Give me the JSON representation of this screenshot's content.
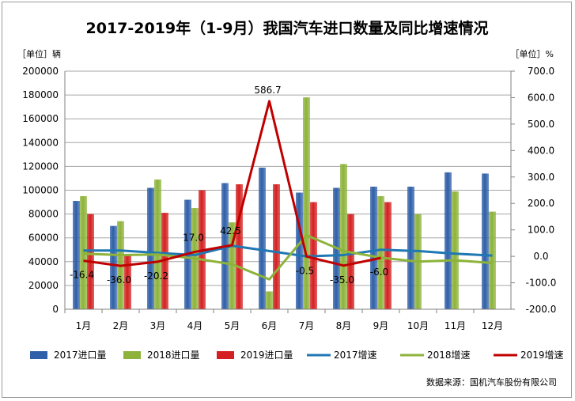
{
  "chart_data": {
    "type": "bar",
    "title": "2017-2019年（1-9月）我国汽车进口数量及同比增速情况",
    "left_unit": "［单位］辆",
    "right_unit": "［单位］%",
    "categories": [
      "1月",
      "2月",
      "3月",
      "4月",
      "5月",
      "6月",
      "7月",
      "8月",
      "9月",
      "10月",
      "11月",
      "12月"
    ],
    "left_axis": {
      "min": 0,
      "max": 200000,
      "step": 20000,
      "ticks": [
        "0",
        "20000",
        "40000",
        "60000",
        "80000",
        "100000",
        "120000",
        "140000",
        "160000",
        "180000",
        "200000"
      ]
    },
    "right_axis": {
      "min": -200,
      "max": 700,
      "step": 100,
      "ticks": [
        "-200.0",
        "-100.0",
        "0.0",
        "100.0",
        "200.0",
        "300.0",
        "400.0",
        "500.0",
        "600.0",
        "700.0"
      ]
    },
    "bar_series": [
      {
        "name": "2017进口量",
        "color": "#2e5fa8",
        "values": [
          91000,
          70000,
          102000,
          92000,
          106000,
          119000,
          98000,
          102000,
          103000,
          103000,
          115000,
          114000
        ]
      },
      {
        "name": "2018进口量",
        "color": "#8db33a",
        "values": [
          95000,
          74000,
          109000,
          85000,
          73000,
          15000,
          178000,
          122000,
          95000,
          80000,
          99000,
          82000
        ]
      },
      {
        "name": "2019进口量",
        "color": "#d42020",
        "values": [
          80000,
          45000,
          81000,
          100000,
          105000,
          105000,
          90000,
          80000,
          90000,
          null,
          null,
          null
        ]
      }
    ],
    "line_series": [
      {
        "name": "2017增速",
        "color": "#1f77b4",
        "values": [
          22,
          22,
          13,
          5,
          40,
          20,
          0,
          5,
          25,
          20,
          10,
          3
        ]
      },
      {
        "name": "2018增速",
        "color": "#8db33a",
        "values": [
          10,
          5,
          7,
          -8,
          -30,
          -87,
          80,
          20,
          -5,
          -20,
          -15,
          -25
        ]
      },
      {
        "name": "2019增速",
        "color": "#c00000",
        "values": [
          -16.4,
          -36.0,
          -20.2,
          17.0,
          42.5,
          586.7,
          -0.5,
          -35.0,
          -6.0,
          null,
          null,
          null
        ]
      }
    ],
    "data_labels": [
      {
        "month_index": 0,
        "text": "-16.4"
      },
      {
        "month_index": 1,
        "text": "-36.0"
      },
      {
        "month_index": 2,
        "text": "-20.2"
      },
      {
        "month_index": 3,
        "text": "17.0"
      },
      {
        "month_index": 4,
        "text": "42.5"
      },
      {
        "month_index": 5,
        "text": "586.7"
      },
      {
        "month_index": 6,
        "text": "-0.5"
      },
      {
        "month_index": 7,
        "text": "-35.0"
      },
      {
        "month_index": 8,
        "text": "-6.0"
      }
    ],
    "grid": true,
    "legend_position": "bottom"
  },
  "source": "数据来源：国机汽车股份有限公司"
}
